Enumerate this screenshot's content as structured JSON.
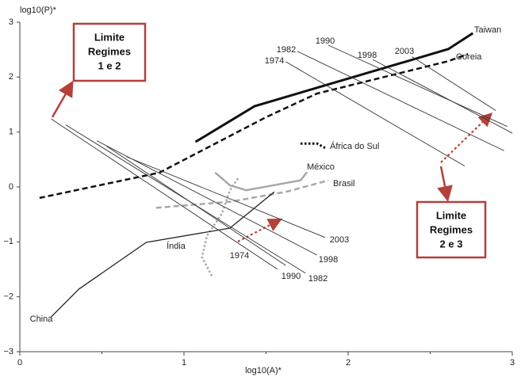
{
  "chart_data": {
    "type": "line",
    "y_label": "log10(P)*",
    "x_label": "log10(A)*",
    "xlim": [
      0,
      3
    ],
    "ylim": [
      -3,
      3
    ],
    "xticks": [
      0,
      1,
      2,
      3
    ],
    "xminorticks": [
      0.5,
      1.5,
      2.5
    ],
    "yticks": [
      3,
      2,
      1,
      0,
      {
        "value": -1,
        "label": "−1"
      },
      {
        "value": -2,
        "label": "−2"
      },
      {
        "value": -3,
        "label": "−3"
      }
    ],
    "series": [
      {
        "name": "Taiwan",
        "color": "#111111",
        "width": 3,
        "style": "solid",
        "x": [
          1.07,
          1.43,
          2.61,
          2.76
        ],
        "values": [
          0.82,
          1.47,
          2.51,
          2.8
        ]
      },
      {
        "name": "Coreia",
        "color": "#111111",
        "width": 2.5,
        "style": "dashed",
        "x": [
          0.12,
          0.85,
          1.5,
          1.81,
          2.61,
          2.73
        ],
        "values": [
          -0.2,
          0.26,
          1.27,
          1.7,
          2.29,
          2.42
        ]
      },
      {
        "name": "África do Sul",
        "color": "#111111",
        "width": 3,
        "style": "dotted",
        "x": [
          1.71,
          1.81,
          1.86
        ],
        "values": [
          0.79,
          0.79,
          0.71
        ]
      },
      {
        "name": "México",
        "color": "#a8a8a8",
        "width": 2.5,
        "style": "solid",
        "x": [
          1.19,
          1.28,
          1.38,
          1.71,
          1.75
        ],
        "values": [
          0.26,
          0.03,
          -0.06,
          0.12,
          0.27
        ]
      },
      {
        "name": "Brasil",
        "color": "#a8a8a8",
        "width": 2.5,
        "style": "dashed",
        "x": [
          0.83,
          1.28,
          1.62,
          1.88
        ],
        "values": [
          -0.38,
          -0.27,
          -0.09,
          0.12
        ]
      },
      {
        "name": "Índia",
        "color": "#a8a8a8",
        "width": 2.5,
        "style": "dotted",
        "x": [
          1.17,
          1.11,
          1.14,
          1.23,
          1.28,
          1.33
        ],
        "values": [
          -1.62,
          -1.28,
          -0.89,
          -0.49,
          -0.06,
          0.16
        ]
      },
      {
        "name": "China",
        "color": "#222222",
        "width": 1.3,
        "style": "solid",
        "x": [
          0.19,
          0.36,
          0.77,
          1.28,
          1.55
        ],
        "values": [
          -2.37,
          -1.86,
          -1.01,
          -0.75,
          -0.09
        ]
      },
      {
        "name": "1974",
        "color": "#333333",
        "width": 0.9,
        "style": "solid",
        "x": [
          0.53,
          1.62
        ],
        "values": [
          0.74,
          -1.43
        ]
      },
      {
        "name": "1982",
        "color": "#333333",
        "width": 0.9,
        "style": "solid",
        "x": [
          0.28,
          1.74
        ],
        "values": [
          1.13,
          -1.57
        ]
      },
      {
        "name": "1990",
        "color": "#333333",
        "width": 0.9,
        "style": "solid",
        "x": [
          0.19,
          1.57
        ],
        "values": [
          1.24,
          -1.5
        ]
      },
      {
        "name": "1998",
        "color": "#333333",
        "width": 0.9,
        "style": "solid",
        "x": [
          0.47,
          1.81
        ],
        "values": [
          0.84,
          -1.24
        ]
      },
      {
        "name": "2003",
        "color": "#333333",
        "width": 0.9,
        "style": "solid",
        "x": [
          0.65,
          1.86
        ],
        "values": [
          0.55,
          -0.92
        ]
      },
      {
        "name": "1974",
        "color": "#333333",
        "width": 0.9,
        "style": "solid",
        "x": [
          1.62,
          2.71
        ],
        "values": [
          2.28,
          0.38
        ]
      },
      {
        "name": "1982",
        "color": "#333333",
        "width": 0.9,
        "style": "solid",
        "x": [
          1.69,
          2.95
        ],
        "values": [
          2.47,
          0.66
        ]
      },
      {
        "name": "1990",
        "color": "#333333",
        "width": 0.9,
        "style": "solid",
        "x": [
          1.88,
          2.97
        ],
        "values": [
          2.58,
          1.1
        ]
      },
      {
        "name": "1998",
        "color": "#333333",
        "width": 0.9,
        "style": "solid",
        "x": [
          2.15,
          3.0
        ],
        "values": [
          2.32,
          0.98
        ]
      },
      {
        "name": "2003",
        "color": "#333333",
        "width": 0.9,
        "style": "solid",
        "x": [
          2.39,
          2.9
        ],
        "values": [
          2.37,
          1.39
        ]
      }
    ],
    "annotations": [
      {
        "lines": [
          "Limite",
          "Regimes",
          "1 e 2"
        ]
      },
      {
        "lines": [
          "Limite",
          "Regimes",
          "2 e 3"
        ]
      }
    ]
  }
}
